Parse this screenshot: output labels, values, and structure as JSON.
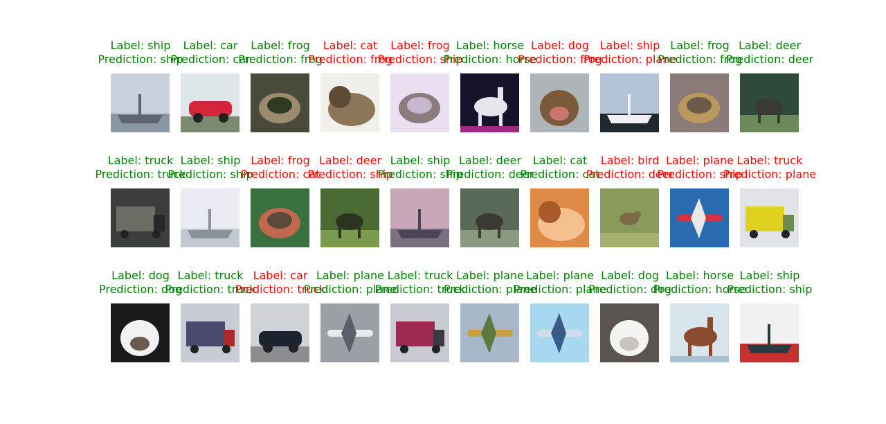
{
  "colors": {
    "correct": "#008000",
    "wrong": "#ff0000"
  },
  "rows": [
    [
      {
        "label": "Label: ship",
        "prediction": "Prediction: ship",
        "correct": true,
        "icon": "ship-photo",
        "palette": [
          "#c9d2dc",
          "#5b6470",
          "#8a96a3"
        ]
      },
      {
        "label": "Label: car",
        "prediction": "Prediction: car",
        "correct": true,
        "icon": "car-photo",
        "palette": [
          "#dfe6e9",
          "#d4253a",
          "#7a8a70"
        ]
      },
      {
        "label": "Label: frog",
        "prediction": "Prediction: frog",
        "correct": true,
        "icon": "frog-photo",
        "palette": [
          "#4a4a3c",
          "#9c8a6c",
          "#2e3a22"
        ]
      },
      {
        "label": "Label: cat",
        "prediction": "Prediction: frog",
        "correct": false,
        "icon": "cat-photo",
        "palette": [
          "#f1efe9",
          "#8c7558",
          "#5d4b36"
        ]
      },
      {
        "label": "Label: frog",
        "prediction": "Prediction: ship",
        "correct": false,
        "icon": "frog-photo",
        "palette": [
          "#e9dff0",
          "#8c7c80",
          "#c8b8cf"
        ]
      },
      {
        "label": "Label: horse",
        "prediction": "Prediction: horse",
        "correct": true,
        "icon": "horse-photo",
        "palette": [
          "#14142a",
          "#e6e6ee",
          "#a02880"
        ]
      },
      {
        "label": "Label: dog",
        "prediction": "Prediction: frog",
        "correct": false,
        "icon": "dog-photo",
        "palette": [
          "#aeb4b8",
          "#7a5a3a",
          "#c8766e"
        ]
      },
      {
        "label": "Label: ship",
        "prediction": "Prediction: plane",
        "correct": false,
        "icon": "ship-photo",
        "palette": [
          "#b4c4d8",
          "#f0f0f4",
          "#202830"
        ]
      },
      {
        "label": "Label: frog",
        "prediction": "Prediction: frog",
        "correct": true,
        "icon": "frog-photo",
        "palette": [
          "#8a7a78",
          "#b8985c",
          "#6e5a4a"
        ]
      },
      {
        "label": "Label: deer",
        "prediction": "Prediction: deer",
        "correct": true,
        "icon": "deer-photo",
        "palette": [
          "#2e4a3a",
          "#3a3a34",
          "#6a8a5a"
        ]
      }
    ],
    [
      {
        "label": "Label: truck",
        "prediction": "Prediction: truck",
        "correct": true,
        "icon": "truck-photo",
        "palette": [
          "#3a3e3a",
          "#6a6e64",
          "#24282a"
        ]
      },
      {
        "label": "Label: ship",
        "prediction": "Prediction: ship",
        "correct": true,
        "icon": "ship-photo",
        "palette": [
          "#e8ecf2",
          "#8a9298",
          "#c0c8d2"
        ]
      },
      {
        "label": "Label: frog",
        "prediction": "Prediction: cat",
        "correct": false,
        "icon": "frog-photo",
        "palette": [
          "#3a7040",
          "#c06850",
          "#5a4a3c"
        ]
      },
      {
        "label": "Label: deer",
        "prediction": "Prediction: ship",
        "correct": false,
        "icon": "deer-photo",
        "palette": [
          "#4a6a34",
          "#2c3420",
          "#7a9a50"
        ]
      },
      {
        "label": "Label: ship",
        "prediction": "Prediction: ship",
        "correct": true,
        "icon": "ship-photo",
        "palette": [
          "#c8a8b8",
          "#4a4656",
          "#7a7080"
        ]
      },
      {
        "label": "Label: deer",
        "prediction": "Prediction: deer",
        "correct": true,
        "icon": "deer-photo",
        "palette": [
          "#5a6a58",
          "#3a3a32",
          "#8a9a80"
        ]
      },
      {
        "label": "Label: cat",
        "prediction": "Prediction: cat",
        "correct": true,
        "icon": "cat-photo",
        "palette": [
          "#e08a48",
          "#f4c090",
          "#a85a2a"
        ]
      },
      {
        "label": "Label: bird",
        "prediction": "Prediction: deer",
        "correct": false,
        "icon": "bird-photo",
        "palette": [
          "#8a9a5a",
          "#a8b070",
          "#7a6a48"
        ]
      },
      {
        "label": "Label: plane",
        "prediction": "Prediction: ship",
        "correct": false,
        "icon": "plane-photo",
        "palette": [
          "#2a6ab0",
          "#d83040",
          "#e8e8e8"
        ]
      },
      {
        "label": "Label: truck",
        "prediction": "Prediction: plane",
        "correct": false,
        "icon": "truck-photo",
        "palette": [
          "#e0e4e8",
          "#e0d020",
          "#6a8a50"
        ]
      }
    ],
    [
      {
        "label": "Label: dog",
        "prediction": "Prediction: dog",
        "correct": true,
        "icon": "dog-photo",
        "palette": [
          "#1a1a1a",
          "#f2f2f2",
          "#6a5a50"
        ]
      },
      {
        "label": "Label: truck",
        "prediction": "Prediction: truck",
        "correct": true,
        "icon": "truck-photo",
        "palette": [
          "#c8ccd4",
          "#4a4a70",
          "#b0282a"
        ]
      },
      {
        "label": "Label: car",
        "prediction": "Prediction: truck",
        "correct": false,
        "icon": "car-photo",
        "palette": [
          "#d0d4d8",
          "#1a2430",
          "#8a8e90"
        ]
      },
      {
        "label": "Label: plane",
        "prediction": "Prediction: plane",
        "correct": true,
        "icon": "plane-photo",
        "palette": [
          "#9aa0a6",
          "#e8eaec",
          "#5a6068"
        ]
      },
      {
        "label": "Label: truck",
        "prediction": "Prediction: truck",
        "correct": true,
        "icon": "truck-photo",
        "palette": [
          "#c8ccd2",
          "#a02850",
          "#3a3a44"
        ]
      },
      {
        "label": "Label: plane",
        "prediction": "Prediction: plane",
        "correct": true,
        "icon": "plane-photo",
        "palette": [
          "#a8b8c8",
          "#c8a040",
          "#5a7a40"
        ]
      },
      {
        "label": "Label: plane",
        "prediction": "Prediction: plane",
        "correct": true,
        "icon": "plane-photo",
        "palette": [
          "#a8d8f0",
          "#d0dce8",
          "#3a5a8a"
        ]
      },
      {
        "label": "Label: dog",
        "prediction": "Prediction: dog",
        "correct": true,
        "icon": "dog-photo",
        "palette": [
          "#5a5450",
          "#f4f4f2",
          "#c8c4c0"
        ]
      },
      {
        "label": "Label: horse",
        "prediction": "Prediction: horse",
        "correct": true,
        "icon": "horse-photo",
        "palette": [
          "#d8e4ec",
          "#8a4a30",
          "#a8c0d0"
        ]
      },
      {
        "label": "Label: ship",
        "prediction": "Prediction: ship",
        "correct": true,
        "icon": "ship-photo",
        "palette": [
          "#f0f0f0",
          "#2a3a44",
          "#c83030"
        ]
      }
    ]
  ]
}
